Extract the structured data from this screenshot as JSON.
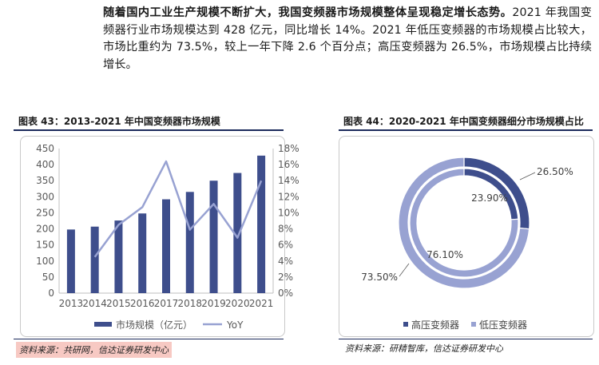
{
  "paragraph": {
    "lead": "随着国内工业生产规模不断扩大，我国变频器市场规模整体呈现稳定增长态势。",
    "body": "2021 年我国变频器行业市场规模达到 428 亿元，同比增长 14%。2021 年低压变频器的市场规模占比较大，市场比重约为 73.5%，较上一年下降 2.6 个百分点；高压变频器为 26.5%，市场规模占比持续增长。"
  },
  "figure43": {
    "title": "图表 43：2013-2021 年中国变频器市场规模",
    "source": "资料来源：共研网，信达证券研发中心"
  },
  "figure44": {
    "title": "图表 44：2020-2021 年中国变频器细分市场规模占比",
    "source": "资料来源：研精智库，信达证券研发中心"
  },
  "colors": {
    "bar": "#3e4e8c",
    "line": "#98a2d2",
    "high_voltage": "#3e4e8c",
    "low_voltage": "#98a2d2",
    "axis_text": "#595959",
    "rule": "#1c2a5c",
    "source_highlight": "#f7c9c3"
  },
  "chart_data": [
    {
      "type": "bar",
      "categories": [
        "2013",
        "2014",
        "2015",
        "2016",
        "2017",
        "2018",
        "2019",
        "2020",
        "2021"
      ],
      "series": [
        {
          "name": "市场规模（亿元）",
          "axis": "left",
          "type": "bar",
          "values": [
            198,
            207,
            226,
            248,
            292,
            315,
            350,
            374,
            428
          ]
        },
        {
          "name": "YoY",
          "axis": "right",
          "type": "line",
          "values": [
            null,
            4.5,
            8.5,
            10.7,
            16.4,
            7.9,
            11.1,
            6.9,
            14.0
          ]
        }
      ],
      "y_left": {
        "min": 0,
        "max": 450,
        "ticks": [
          "0",
          "50",
          "100",
          "150",
          "200",
          "250",
          "300",
          "350",
          "400",
          "450"
        ]
      },
      "y_right": {
        "min": 0,
        "max": 18,
        "ticks": [
          "0%",
          "2%",
          "4%",
          "6%",
          "8%",
          "10%",
          "12%",
          "14%",
          "16%",
          "18%"
        ]
      },
      "grid": false,
      "legend_position": "bottom"
    },
    {
      "type": "pie",
      "style": "double-ring",
      "rings": [
        {
          "ring": "outer",
          "year": "2021",
          "slices": [
            {
              "name": "高压变频器",
              "value": 26.5,
              "label": "26.50%"
            },
            {
              "name": "低压变频器",
              "value": 73.5,
              "label": "73.50%"
            }
          ]
        },
        {
          "ring": "inner",
          "year": "2020",
          "slices": [
            {
              "name": "高压变频器",
              "value": 23.9,
              "label": "23.90%"
            },
            {
              "name": "低压变频器",
              "value": 76.1,
              "label": "76.10%"
            }
          ]
        }
      ],
      "legend": [
        "高压变频器",
        "低压变频器"
      ],
      "legend_position": "bottom"
    }
  ]
}
